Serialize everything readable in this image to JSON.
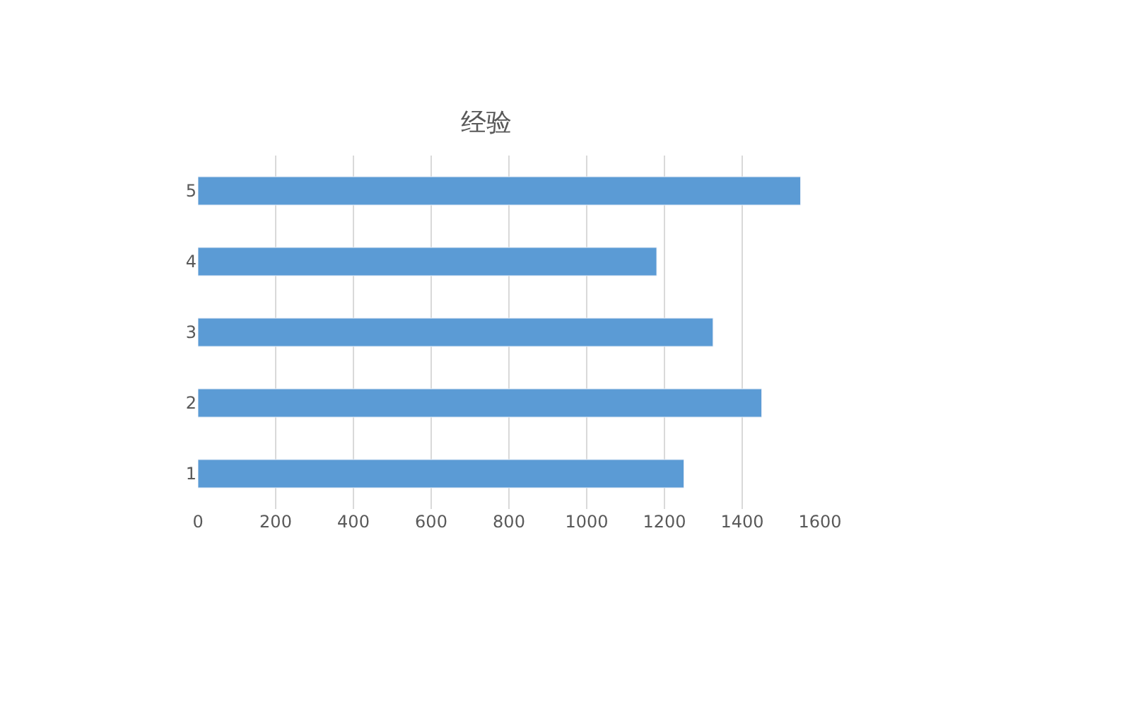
{
  "chart_data": {
    "type": "bar",
    "orientation": "horizontal",
    "title": "经验",
    "categories": [
      "5",
      "4",
      "3",
      "2",
      "1"
    ],
    "values": [
      1550,
      1180,
      1325,
      1450,
      1250
    ],
    "color": "#5b9bd5",
    "xlim": [
      0,
      1600
    ],
    "xticks": [
      0,
      200,
      400,
      600,
      800,
      1000,
      1200,
      1400,
      1600
    ],
    "grid": "x"
  }
}
